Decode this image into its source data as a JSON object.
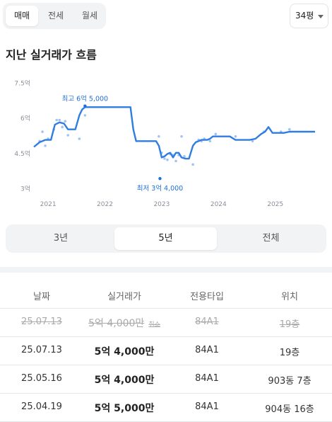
{
  "trade_tabs": [
    {
      "label": "매매",
      "active": true
    },
    {
      "label": "전세",
      "active": false
    },
    {
      "label": "월세",
      "active": false
    }
  ],
  "size_select": {
    "value": "34평",
    "icon": "caret-down-icon"
  },
  "section": {
    "title": "지난 실거래가 흐름"
  },
  "chart_data": {
    "type": "line",
    "y_tick_labels": [
      "7.5억",
      "6억",
      "4.5억",
      "3억"
    ],
    "y_ticks": [
      7.5,
      6,
      4.5,
      3
    ],
    "x_tick_labels": [
      "2021",
      "2022",
      "2023",
      "2024",
      "2025"
    ],
    "x_ticks": [
      2021,
      2022,
      2023,
      2024,
      2025
    ],
    "xlim": [
      2020.75,
      2025.75
    ],
    "ylim": [
      2.8,
      7.7
    ],
    "unit": "억",
    "series": [
      {
        "x": [
          2020.75,
          2020.85,
          2020.95,
          2021.05,
          2021.12,
          2021.2,
          2021.28,
          2021.35,
          2021.42,
          2021.48,
          2021.55,
          2021.6,
          2021.65,
          2021.72,
          2021.8,
          2021.9,
          2022.1,
          2022.3,
          2022.45,
          2022.5,
          2022.55,
          2022.65,
          2022.75,
          2022.85,
          2022.9,
          2022.95,
          2023.0,
          2023.05,
          2023.1,
          2023.15,
          2023.2,
          2023.25,
          2023.3,
          2023.35,
          2023.42,
          2023.48,
          2023.55,
          2023.6,
          2023.7,
          2023.8,
          2023.85,
          2023.9,
          2024.0,
          2024.1,
          2024.2,
          2024.3,
          2024.4,
          2024.55,
          2024.65,
          2024.75,
          2024.82,
          2024.88,
          2024.95,
          2025.05,
          2025.15,
          2025.25,
          2025.35,
          2025.5,
          2025.7
        ],
        "values": [
          4.75,
          4.95,
          5.05,
          5.05,
          5.7,
          5.8,
          5.75,
          5.5,
          5.5,
          5.5,
          6.1,
          6.35,
          6.45,
          6.45,
          6.45,
          6.45,
          6.45,
          6.45,
          6.45,
          5.5,
          5.0,
          5.0,
          5.0,
          5.0,
          5.0,
          4.8,
          4.3,
          4.35,
          4.45,
          4.5,
          4.3,
          4.5,
          4.5,
          4.3,
          4.25,
          4.25,
          4.8,
          4.95,
          5.05,
          5.05,
          5.1,
          5.2,
          5.2,
          5.2,
          5.2,
          5.05,
          5.05,
          5.05,
          5.1,
          5.3,
          5.4,
          5.6,
          5.35,
          5.35,
          5.35,
          5.4,
          5.4,
          5.4,
          5.4
        ]
      }
    ],
    "scatter": {
      "x": [
        2020.85,
        2020.9,
        2020.95,
        2021.0,
        2021.1,
        2021.15,
        2021.2,
        2021.25,
        2021.3,
        2021.35,
        2021.55,
        2021.65,
        2022.95,
        2023.0,
        2023.05,
        2023.1,
        2023.15,
        2023.2,
        2023.25,
        2023.3,
        2023.35,
        2023.4,
        2023.55,
        2023.65,
        2023.7,
        2023.75,
        2023.85,
        2023.95,
        2024.3,
        2024.6,
        2024.8,
        2025.1,
        2025.25
      ],
      "values": [
        5.0,
        5.4,
        4.8,
        5.1,
        5.5,
        5.9,
        5.9,
        5.6,
        5.85,
        5.25,
        5.1,
        6.1,
        5.2,
        4.5,
        4.25,
        4.2,
        4.45,
        4.4,
        4.15,
        4.4,
        5.2,
        4.35,
        4.0,
        5.05,
        5.0,
        5.1,
        5.0,
        5.3,
        5.2,
        5.0,
        5.4,
        5.4,
        5.5
      ]
    },
    "annotations": [
      {
        "text": "최고 6억 5,000",
        "x": 2021.65,
        "y": 6.5
      },
      {
        "text": "최저 3억 4,000",
        "x": 2022.97,
        "y": 3.4
      }
    ],
    "colors": {
      "line": "#2f7de1",
      "points": "#9fc4f3",
      "axis_text": "#8a8f98",
      "annotation": "#1f6fd6"
    }
  },
  "period_tabs": [
    {
      "label": "3년",
      "active": false
    },
    {
      "label": "5년",
      "active": true
    },
    {
      "label": "전체",
      "active": false
    }
  ],
  "table": {
    "headers": [
      "날짜",
      "실거래가",
      "전용타입",
      "위치"
    ],
    "rows": [
      {
        "date": "25.07.13",
        "price": "5억 4,000만",
        "type": "84A1",
        "location": "19층",
        "cancelled": true,
        "cancel_label": "취소"
      },
      {
        "date": "25.07.13",
        "price": "5억 4,000만",
        "type": "84A1",
        "location": "19층",
        "cancelled": false
      },
      {
        "date": "25.05.16",
        "price": "5억 4,000만",
        "type": "84A1",
        "location": "903동 7층",
        "cancelled": false
      },
      {
        "date": "25.04.19",
        "price": "5억 5,000만",
        "type": "84A1",
        "location": "904동 16층",
        "cancelled": false
      }
    ]
  }
}
